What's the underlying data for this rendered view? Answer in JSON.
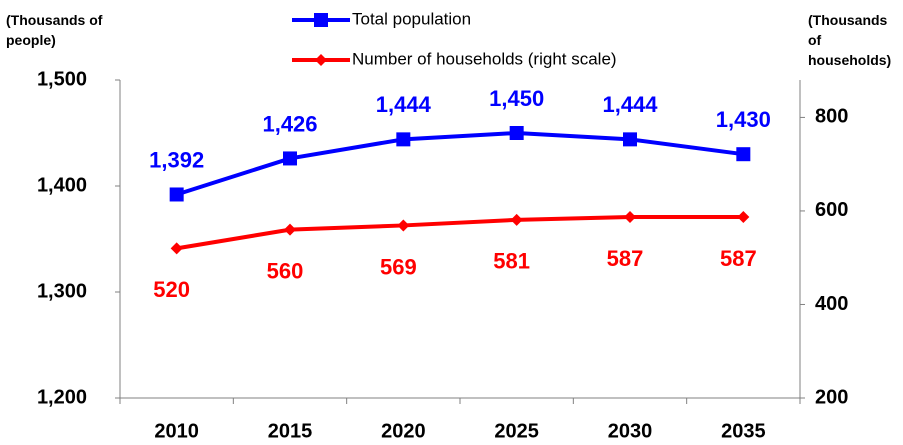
{
  "chart_data": {
    "type": "line",
    "y_label": "(Thousands of people)",
    "y2_label": "(Thousands of households)",
    "categories": [
      "2010",
      "2015",
      "2020",
      "2025",
      "2030",
      "2035"
    ],
    "series": [
      {
        "name": "Total population",
        "color": "#0000ff",
        "marker": "square",
        "values": [
          1392,
          1426,
          1444,
          1450,
          1444,
          1430
        ],
        "value_labels": [
          "1,392",
          "1,426",
          "1,444",
          "1,450",
          "1,444",
          "1,430"
        ]
      },
      {
        "name": "Number of households (right scale)",
        "color": "#ff0000",
        "marker": "diamond",
        "axis": "y2",
        "values": [
          520,
          560,
          569,
          581,
          587,
          587
        ]
      }
    ],
    "ylim": [
      1200,
      1500
    ],
    "yticks": [
      {
        "value": 1200,
        "label": "1,200"
      },
      {
        "value": 1300,
        "label": "1,300"
      },
      {
        "value": 1400,
        "label": "1,400"
      },
      {
        "value": 1500,
        "label": "1,500"
      }
    ],
    "y2lim": [
      200,
      880
    ],
    "y2ticks": [
      200,
      400,
      600,
      800
    ]
  }
}
